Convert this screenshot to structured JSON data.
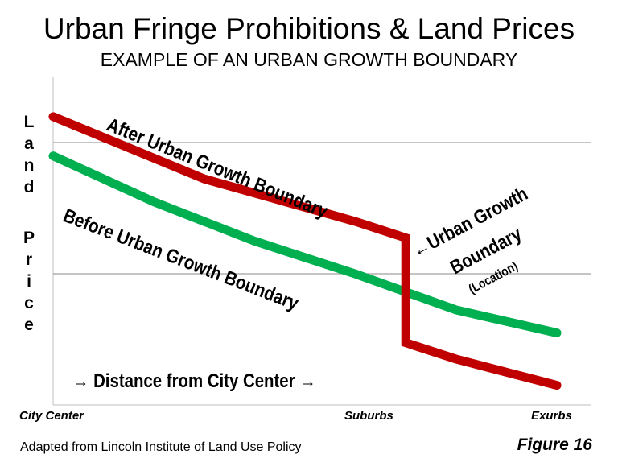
{
  "chart_data": {
    "type": "line",
    "title": "Urban Fringe Prohibitions & Land Prices",
    "subtitle": "EXAMPLE OF AN URBAN GROWTH BOUNDARY",
    "ylabel": "Land Price",
    "xlabel": "→ Distance from City Center →",
    "x_ticks": [
      "City Center",
      "Suburbs",
      "Exurbs"
    ],
    "grid": true,
    "series": [
      {
        "name": "After Urban Growth Boundary",
        "color": "#c00000",
        "points": [
          [
            0,
            88
          ],
          [
            0.3,
            69
          ],
          [
            0.6,
            56
          ],
          [
            0.7,
            51
          ],
          [
            0.7,
            19
          ],
          [
            0.8,
            14
          ],
          [
            0.9,
            10
          ],
          [
            1.0,
            6
          ]
        ]
      },
      {
        "name": "Before Urban Growth Boundary",
        "color": "#00b050",
        "points": [
          [
            0,
            76
          ],
          [
            0.2,
            62
          ],
          [
            0.4,
            50
          ],
          [
            0.6,
            40
          ],
          [
            0.8,
            29
          ],
          [
            1.0,
            22
          ]
        ]
      }
    ],
    "annotations": {
      "boundary_label_line1": "←Urban Growth",
      "boundary_label_line2": "Boundary",
      "boundary_label_line3": "(Location)"
    }
  },
  "ylabel_letters_top": [
    "L",
    "a",
    "n",
    "d"
  ],
  "ylabel_letters_bottom": [
    "P",
    "r",
    "i",
    "c",
    "e"
  ],
  "source": "Adapted from Lincoln Institute of Land Use Policy",
  "figure": "Figure 16"
}
